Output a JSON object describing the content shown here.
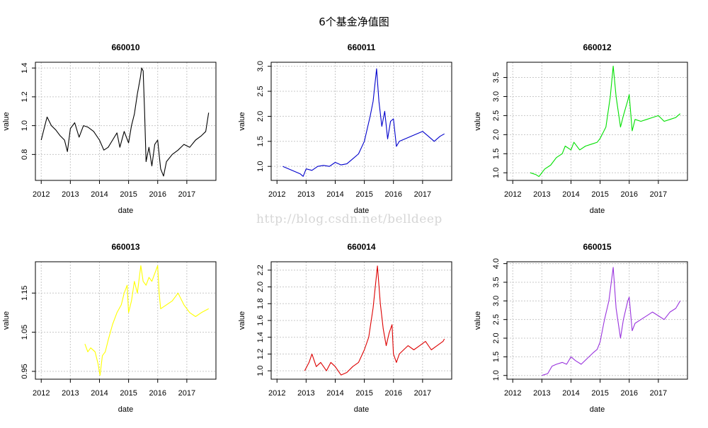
{
  "figure": {
    "title": "6个基金净值图",
    "watermark": "http://blog.csdn.net/belldeep"
  },
  "chart_data": [
    {
      "type": "line",
      "title": "660010",
      "xlabel": "date",
      "ylabel": "value",
      "xlim": [
        2011.8,
        2018.0
      ],
      "ylim": [
        0.62,
        1.44
      ],
      "xticks": [
        2012,
        2013,
        2014,
        2015,
        2016,
        2017
      ],
      "yticks": [
        0.8,
        1.0,
        1.2,
        1.4
      ],
      "color": "#000000",
      "grid": true,
      "series": [
        {
          "x": [
            2012.0,
            2012.1,
            2012.2,
            2012.35,
            2012.5,
            2012.65,
            2012.8,
            2012.9,
            2013.0,
            2013.15,
            2013.3,
            2013.45,
            2013.6,
            2013.8,
            2014.0,
            2014.15,
            2014.3,
            2014.45,
            2014.6,
            2014.7,
            2014.85,
            2015.0,
            2015.1,
            2015.2,
            2015.3,
            2015.4,
            2015.45,
            2015.5,
            2015.55,
            2015.6,
            2015.7,
            2015.8,
            2015.9,
            2016.0,
            2016.1,
            2016.2,
            2016.3,
            2016.5,
            2016.7,
            2016.9,
            2017.1,
            2017.3,
            2017.5,
            2017.65,
            2017.75
          ],
          "y": [
            0.9,
            0.98,
            1.06,
            1.0,
            0.97,
            0.93,
            0.9,
            0.82,
            0.98,
            1.02,
            0.92,
            1.0,
            0.99,
            0.96,
            0.9,
            0.83,
            0.85,
            0.9,
            0.95,
            0.85,
            0.96,
            0.88,
            1.0,
            1.08,
            1.22,
            1.33,
            1.4,
            1.38,
            1.1,
            0.75,
            0.85,
            0.72,
            0.87,
            0.9,
            0.7,
            0.65,
            0.75,
            0.8,
            0.83,
            0.87,
            0.85,
            0.9,
            0.93,
            0.96,
            1.09
          ]
        }
      ]
    },
    {
      "type": "line",
      "title": "660011",
      "xlabel": "date",
      "ylabel": "value",
      "xlim": [
        2011.8,
        2018.0
      ],
      "ylim": [
        0.72,
        3.08
      ],
      "xticks": [
        2012,
        2013,
        2014,
        2015,
        2016,
        2017
      ],
      "yticks": [
        1.0,
        1.5,
        2.0,
        2.5,
        3.0
      ],
      "color": "#0000cc",
      "grid": true,
      "series": [
        {
          "x": [
            2012.2,
            2012.4,
            2012.6,
            2012.8,
            2012.9,
            2013.0,
            2013.2,
            2013.4,
            2013.6,
            2013.8,
            2014.0,
            2014.2,
            2014.4,
            2014.6,
            2014.8,
            2015.0,
            2015.2,
            2015.3,
            2015.42,
            2015.5,
            2015.6,
            2015.7,
            2015.8,
            2015.9,
            2016.0,
            2016.1,
            2016.2,
            2016.4,
            2016.6,
            2016.8,
            2017.0,
            2017.2,
            2017.4,
            2017.6,
            2017.75
          ],
          "y": [
            1.0,
            0.95,
            0.9,
            0.85,
            0.8,
            0.95,
            0.92,
            1.0,
            1.02,
            1.0,
            1.08,
            1.03,
            1.05,
            1.15,
            1.25,
            1.5,
            2.0,
            2.3,
            2.95,
            2.3,
            1.8,
            2.1,
            1.55,
            1.9,
            1.95,
            1.4,
            1.5,
            1.55,
            1.6,
            1.65,
            1.7,
            1.6,
            1.5,
            1.6,
            1.65
          ]
        }
      ]
    },
    {
      "type": "line",
      "title": "660012",
      "xlabel": "date",
      "ylabel": "value",
      "xlim": [
        2011.8,
        2018.0
      ],
      "ylim": [
        0.8,
        3.9
      ],
      "xticks": [
        2012,
        2013,
        2014,
        2015,
        2016,
        2017
      ],
      "yticks": [
        1.0,
        1.5,
        2.0,
        2.5,
        3.0,
        3.5
      ],
      "color": "#00e000",
      "grid": true,
      "series": [
        {
          "x": [
            2012.6,
            2012.8,
            2012.9,
            2013.1,
            2013.3,
            2013.5,
            2013.7,
            2013.8,
            2014.0,
            2014.1,
            2014.3,
            2014.5,
            2014.7,
            2014.9,
            2015.0,
            2015.2,
            2015.35,
            2015.45,
            2015.55,
            2015.7,
            2015.8,
            2015.95,
            2016.0,
            2016.1,
            2016.2,
            2016.4,
            2016.6,
            2016.8,
            2017.0,
            2017.2,
            2017.4,
            2017.6,
            2017.75
          ],
          "y": [
            1.0,
            0.95,
            0.9,
            1.1,
            1.2,
            1.4,
            1.5,
            1.7,
            1.6,
            1.8,
            1.6,
            1.7,
            1.75,
            1.8,
            1.9,
            2.2,
            3.0,
            3.8,
            3.0,
            2.2,
            2.5,
            2.9,
            3.05,
            2.1,
            2.4,
            2.35,
            2.4,
            2.45,
            2.5,
            2.35,
            2.4,
            2.45,
            2.55
          ]
        }
      ]
    },
    {
      "type": "line",
      "title": "660013",
      "xlabel": "date",
      "ylabel": "value",
      "xlim": [
        2011.8,
        2018.0
      ],
      "ylim": [
        0.93,
        1.23
      ],
      "xticks": [
        2012,
        2013,
        2014,
        2015,
        2016,
        2017
      ],
      "yticks": [
        0.95,
        1.05,
        1.15
      ],
      "color": "#ffff00",
      "grid": true,
      "series": [
        {
          "x": [
            2013.5,
            2013.6,
            2013.7,
            2013.85,
            2013.95,
            2014.02,
            2014.1,
            2014.2,
            2014.3,
            2014.45,
            2014.6,
            2014.75,
            2014.85,
            2014.95,
            2015.0,
            2015.1,
            2015.2,
            2015.3,
            2015.42,
            2015.5,
            2015.6,
            2015.7,
            2015.8,
            2015.9,
            2016.0,
            2016.05,
            2016.1,
            2016.3,
            2016.5,
            2016.7,
            2016.9,
            2017.1,
            2017.3,
            2017.5,
            2017.75
          ],
          "y": [
            1.02,
            1.0,
            1.01,
            1.0,
            0.97,
            0.94,
            0.99,
            1.0,
            1.03,
            1.07,
            1.1,
            1.12,
            1.15,
            1.17,
            1.1,
            1.13,
            1.18,
            1.15,
            1.22,
            1.18,
            1.17,
            1.19,
            1.18,
            1.2,
            1.22,
            1.15,
            1.11,
            1.12,
            1.13,
            1.15,
            1.12,
            1.1,
            1.09,
            1.1,
            1.11
          ]
        }
      ]
    },
    {
      "type": "line",
      "title": "660014",
      "xlabel": "date",
      "ylabel": "value",
      "xlim": [
        2011.8,
        2018.0
      ],
      "ylim": [
        0.9,
        2.3
      ],
      "xticks": [
        2012,
        2013,
        2014,
        2015,
        2016,
        2017
      ],
      "yticks": [
        1.0,
        1.2,
        1.4,
        1.6,
        1.8,
        2.0,
        2.2
      ],
      "color": "#dd0000",
      "grid": true,
      "series": [
        {
          "x": [
            2012.95,
            2013.1,
            2013.2,
            2013.35,
            2013.5,
            2013.7,
            2013.85,
            2014.0,
            2014.2,
            2014.4,
            2014.6,
            2014.8,
            2015.0,
            2015.15,
            2015.3,
            2015.45,
            2015.55,
            2015.65,
            2015.75,
            2015.85,
            2015.95,
            2016.0,
            2016.1,
            2016.2,
            2016.35,
            2016.5,
            2016.7,
            2016.9,
            2017.1,
            2017.3,
            2017.5,
            2017.7,
            2017.75
          ],
          "y": [
            1.0,
            1.1,
            1.2,
            1.05,
            1.1,
            1.0,
            1.1,
            1.05,
            0.95,
            0.98,
            1.05,
            1.1,
            1.25,
            1.4,
            1.75,
            2.25,
            1.8,
            1.5,
            1.3,
            1.45,
            1.55,
            1.2,
            1.1,
            1.2,
            1.25,
            1.3,
            1.25,
            1.3,
            1.35,
            1.25,
            1.3,
            1.35,
            1.38
          ]
        }
      ]
    },
    {
      "type": "line",
      "title": "660015",
      "xlabel": "date",
      "ylabel": "value",
      "xlim": [
        2011.8,
        2018.0
      ],
      "ylim": [
        0.9,
        4.05
      ],
      "xticks": [
        2012,
        2013,
        2014,
        2015,
        2016,
        2017
      ],
      "yticks": [
        1.0,
        1.5,
        2.0,
        2.5,
        3.0,
        3.5,
        4.0
      ],
      "color": "#9933dd",
      "grid": true,
      "series": [
        {
          "x": [
            2013.0,
            2013.2,
            2013.35,
            2013.5,
            2013.7,
            2013.85,
            2014.0,
            2014.15,
            2014.35,
            2014.55,
            2014.75,
            2014.9,
            2015.0,
            2015.15,
            2015.3,
            2015.45,
            2015.55,
            2015.7,
            2015.8,
            2015.95,
            2016.0,
            2016.1,
            2016.2,
            2016.4,
            2016.6,
            2016.8,
            2017.0,
            2017.2,
            2017.4,
            2017.6,
            2017.75
          ],
          "y": [
            1.0,
            1.05,
            1.25,
            1.3,
            1.35,
            1.3,
            1.5,
            1.4,
            1.3,
            1.45,
            1.6,
            1.7,
            1.9,
            2.5,
            3.0,
            3.9,
            2.8,
            2.0,
            2.5,
            3.0,
            3.1,
            2.2,
            2.4,
            2.5,
            2.6,
            2.7,
            2.6,
            2.5,
            2.7,
            2.8,
            3.0
          ]
        }
      ]
    }
  ]
}
